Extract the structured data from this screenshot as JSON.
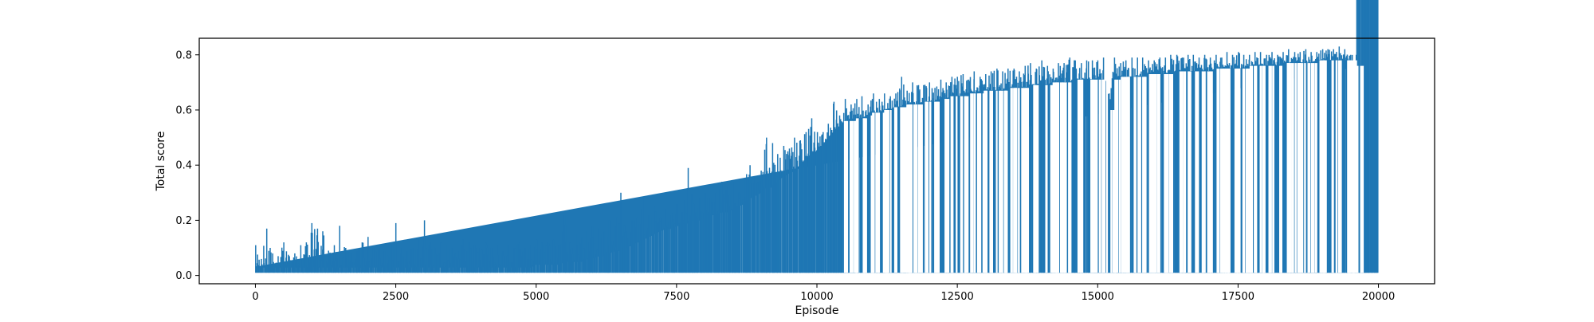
{
  "chart_data": {
    "type": "line",
    "title": "",
    "xlabel": "Episode",
    "ylabel": "Total score",
    "xlim": [
      -1000,
      21000
    ],
    "ylim": [
      -0.03,
      0.86
    ],
    "x_ticks": [
      0,
      2500,
      5000,
      7500,
      10000,
      12500,
      15000,
      17500,
      20000
    ],
    "x_tick_labels": [
      "0",
      "2500",
      "5000",
      "7500",
      "10000",
      "12500",
      "15000",
      "17500",
      "20000"
    ],
    "y_ticks": [
      0.0,
      0.2,
      0.4,
      0.6,
      0.8
    ],
    "y_tick_labels": [
      "0.0",
      "0.2",
      "0.4",
      "0.6",
      "0.8"
    ],
    "grid": false,
    "legend": "none",
    "series": [
      {
        "color": "#1f77b4",
        "x": [
          0,
          100,
          200,
          300,
          400,
          500,
          600,
          700,
          800,
          900,
          1000,
          1100,
          1200,
          1300,
          1400,
          1500,
          1600,
          1700,
          1800,
          1900,
          2000,
          2100,
          2200,
          2300,
          2400,
          2500,
          2600,
          2700,
          2800,
          2900,
          3000,
          3100,
          3200,
          3300,
          3400,
          3500,
          3600,
          3700,
          3800,
          3900,
          4000,
          4100,
          4200,
          4300,
          4400,
          4500,
          4600,
          4700,
          4800,
          4900,
          5000,
          5100,
          5200,
          5300,
          5400,
          5500,
          5600,
          5700,
          5800,
          5900,
          6000,
          6100,
          6200,
          6300,
          6400,
          6500,
          6600,
          6700,
          6800,
          6900,
          7000,
          7100,
          7200,
          7300,
          7400,
          7500,
          7600,
          7700,
          7800,
          7900,
          8000,
          8100,
          8200,
          8300,
          8400,
          8500,
          8600,
          8700,
          8800,
          8900,
          9000,
          9100,
          9200,
          9300,
          9400,
          9500,
          9600,
          9700,
          9800,
          9900,
          10000,
          10100,
          10200,
          10300,
          10400,
          10500,
          10600,
          10700,
          10800,
          10900,
          11000,
          11100,
          11200,
          11300,
          11400,
          11500,
          11600,
          11700,
          11800,
          11900,
          12000,
          12100,
          12200,
          12300,
          12400,
          12500,
          12600,
          12700,
          12800,
          12900,
          13000,
          13100,
          13200,
          13300,
          13400,
          13500,
          13600,
          13700,
          13800,
          13900,
          14000,
          14100,
          14200,
          14300,
          14400,
          14500,
          14600,
          14700,
          14800,
          14900,
          15000,
          15100,
          15200,
          15300,
          15400,
          15500,
          15600,
          15700,
          15800,
          15900,
          16000,
          16100,
          16200,
          16300,
          16400,
          16500,
          16600,
          16700,
          16800,
          16900,
          17000,
          17100,
          17200,
          17300,
          17400,
          17500,
          17600,
          17700,
          17800,
          17900,
          18000,
          18100,
          18200,
          18300,
          18400,
          18500,
          18600,
          18700,
          18800,
          18900,
          19000,
          19100,
          19200,
          19300,
          19400,
          19500,
          19600,
          19700,
          19800,
          19900,
          20000
        ],
        "y_max": [
          0.11,
          0.06,
          0.17,
          0.08,
          0.07,
          0.12,
          0.07,
          0.08,
          0.11,
          0.12,
          0.19,
          0.17,
          0.16,
          0.09,
          0.11,
          0.18,
          0.1,
          0.08,
          0.09,
          0.12,
          0.14,
          0.1,
          0.1,
          0.09,
          0.1,
          0.19,
          0.1,
          0.09,
          0.1,
          0.13,
          0.2,
          0.12,
          0.1,
          0.12,
          0.11,
          0.1,
          0.09,
          0.13,
          0.12,
          0.11,
          0.1,
          0.12,
          0.1,
          0.11,
          0.09,
          0.11,
          0.1,
          0.12,
          0.1,
          0.11,
          0.13,
          0.12,
          0.12,
          0.13,
          0.11,
          0.22,
          0.12,
          0.15,
          0.14,
          0.16,
          0.18,
          0.17,
          0.16,
          0.2,
          0.18,
          0.3,
          0.16,
          0.2,
          0.21,
          0.28,
          0.22,
          0.25,
          0.21,
          0.24,
          0.22,
          0.26,
          0.23,
          0.39,
          0.26,
          0.28,
          0.3,
          0.28,
          0.3,
          0.34,
          0.32,
          0.34,
          0.3,
          0.35,
          0.4,
          0.36,
          0.38,
          0.5,
          0.48,
          0.44,
          0.47,
          0.46,
          0.5,
          0.49,
          0.52,
          0.57,
          0.52,
          0.52,
          0.55,
          0.63,
          0.58,
          0.64,
          0.62,
          0.64,
          0.65,
          0.62,
          0.66,
          0.64,
          0.66,
          0.65,
          0.66,
          0.72,
          0.67,
          0.7,
          0.69,
          0.69,
          0.7,
          0.68,
          0.71,
          0.7,
          0.72,
          0.72,
          0.73,
          0.71,
          0.74,
          0.72,
          0.73,
          0.74,
          0.75,
          0.74,
          0.75,
          0.75,
          0.74,
          0.76,
          0.77,
          0.75,
          0.78,
          0.76,
          0.75,
          0.77,
          0.77,
          0.79,
          0.78,
          0.77,
          0.78,
          0.78,
          0.78,
          0.79,
          0.66,
          0.79,
          0.77,
          0.78,
          0.79,
          0.79,
          0.79,
          0.78,
          0.78,
          0.79,
          0.79,
          0.8,
          0.8,
          0.79,
          0.8,
          0.8,
          0.79,
          0.8,
          0.79,
          0.8,
          0.79,
          0.81,
          0.8,
          0.81,
          0.8,
          0.8,
          0.81,
          0.81,
          0.8,
          0.81,
          0.8,
          0.81,
          0.82,
          0.81,
          0.81,
          0.82,
          0.81,
          0.81,
          0.82,
          0.82,
          0.82,
          0.83,
          0.82,
          0.8,
          0.8
        ],
        "y_min": [
          0.01,
          0.01,
          0.01,
          0.01,
          0.01,
          0.01,
          0.01,
          0.01,
          0.01,
          0.01,
          0.01,
          0.01,
          0.01,
          0.01,
          0.01,
          0.01,
          0.01,
          0.01,
          0.01,
          0.01,
          0.01,
          0.01,
          0.01,
          0.01,
          0.01,
          0.01,
          0.01,
          0.01,
          0.01,
          0.01,
          0.01,
          0.01,
          0.01,
          0.01,
          0.01,
          0.01,
          0.01,
          0.01,
          0.01,
          0.01,
          0.01,
          0.01,
          0.01,
          0.01,
          0.01,
          0.01,
          0.01,
          0.01,
          0.01,
          0.01,
          0.01,
          0.01,
          0.01,
          0.01,
          0.01,
          0.01,
          0.01,
          0.01,
          0.01,
          0.01,
          0.01,
          0.01,
          0.01,
          0.01,
          0.01,
          0.01,
          0.01,
          0.01,
          0.01,
          0.01,
          0.01,
          0.01,
          0.01,
          0.01,
          0.01,
          0.01,
          0.01,
          0.01,
          0.01,
          0.01,
          0.01,
          0.01,
          0.01,
          0.01,
          0.01,
          0.01,
          0.01,
          0.01,
          0.01,
          0.01,
          0.01,
          0.01,
          0.01,
          0.01,
          0.01,
          0.01,
          0.01,
          0.01,
          0.01,
          0.01,
          0.01,
          0.01,
          0.01,
          0.01,
          0.01,
          0.01,
          0.01,
          0.01,
          0.01,
          0.01,
          0.01,
          0.01,
          0.01,
          0.01,
          0.01,
          0.01,
          0.01,
          0.01,
          0.01,
          0.01,
          0.01,
          0.01,
          0.01,
          0.01,
          0.01,
          0.01,
          0.01,
          0.01,
          0.01,
          0.01,
          0.01,
          0.01,
          0.01,
          0.01,
          0.01,
          0.01,
          0.01,
          0.01,
          0.01,
          0.01,
          0.01,
          0.01,
          0.01,
          0.01,
          0.01,
          0.01,
          0.01,
          0.01,
          0.01,
          0.01,
          0.01,
          0.01,
          0.01,
          0.01,
          0.01,
          0.01,
          0.01,
          0.01,
          0.01,
          0.01,
          0.01,
          0.01,
          0.01,
          0.01,
          0.01,
          0.01,
          0.01,
          0.01,
          0.01,
          0.01,
          0.01,
          0.01,
          0.01,
          0.01,
          0.01,
          0.01,
          0.01,
          0.01,
          0.01,
          0.01,
          0.01,
          0.01,
          0.01,
          0.01,
          0.01,
          0.01,
          0.01,
          0.01,
          0.01,
          0.01,
          0.01,
          0.01,
          0.01,
          0.01,
          0.01,
          0.01,
          0.01,
          0.01,
          0.01,
          0.01,
          0.01,
          0.01,
          0.01,
          0.01,
          0.01
        ],
        "y_dense_top": [
          0.03,
          0.03,
          0.03,
          0.03,
          0.03,
          0.03,
          0.03,
          0.03,
          0.03,
          0.03,
          0.03,
          0.03,
          0.03,
          0.03,
          0.03,
          0.03,
          0.03,
          0.03,
          0.03,
          0.03,
          0.03,
          0.03,
          0.03,
          0.03,
          0.03,
          0.03,
          0.03,
          0.03,
          0.03,
          0.03,
          0.03,
          0.03,
          0.03,
          0.03,
          0.03,
          0.03,
          0.03,
          0.03,
          0.03,
          0.03,
          0.03,
          0.03,
          0.03,
          0.03,
          0.03,
          0.03,
          0.03,
          0.03,
          0.03,
          0.03,
          0.04,
          0.04,
          0.04,
          0.04,
          0.04,
          0.05,
          0.05,
          0.05,
          0.05,
          0.06,
          0.06,
          0.07,
          0.07,
          0.08,
          0.09,
          0.09,
          0.1,
          0.11,
          0.12,
          0.13,
          0.14,
          0.15,
          0.16,
          0.17,
          0.17,
          0.18,
          0.18,
          0.19,
          0.2,
          0.2,
          0.21,
          0.22,
          0.22,
          0.23,
          0.23,
          0.24,
          0.25,
          0.26,
          0.28,
          0.29,
          0.3,
          0.32,
          0.32,
          0.34,
          0.36,
          0.37,
          0.38,
          0.4,
          0.42,
          0.44,
          0.45,
          0.47,
          0.5,
          0.52,
          0.54,
          0.56,
          0.56,
          0.57,
          0.57,
          0.58,
          0.59,
          0.59,
          0.6,
          0.6,
          0.61,
          0.61,
          0.62,
          0.62,
          0.62,
          0.63,
          0.63,
          0.63,
          0.64,
          0.64,
          0.65,
          0.65,
          0.65,
          0.66,
          0.66,
          0.66,
          0.67,
          0.67,
          0.67,
          0.67,
          0.68,
          0.68,
          0.68,
          0.68,
          0.69,
          0.69,
          0.69,
          0.69,
          0.7,
          0.7,
          0.7,
          0.7,
          0.71,
          0.71,
          0.71,
          0.71,
          0.71,
          0.71,
          0.6,
          0.71,
          0.72,
          0.72,
          0.72,
          0.72,
          0.72,
          0.73,
          0.73,
          0.73,
          0.73,
          0.73,
          0.74,
          0.74,
          0.74,
          0.74,
          0.74,
          0.74,
          0.74,
          0.75,
          0.75,
          0.75,
          0.75,
          0.75,
          0.75,
          0.76,
          0.76,
          0.76,
          0.76,
          0.76,
          0.76,
          0.77,
          0.77,
          0.77,
          0.77,
          0.77,
          0.77,
          0.78,
          0.78,
          0.78,
          0.78,
          0.78,
          0.78,
          0.78,
          0.76,
          0.76
        ]
      }
    ]
  }
}
